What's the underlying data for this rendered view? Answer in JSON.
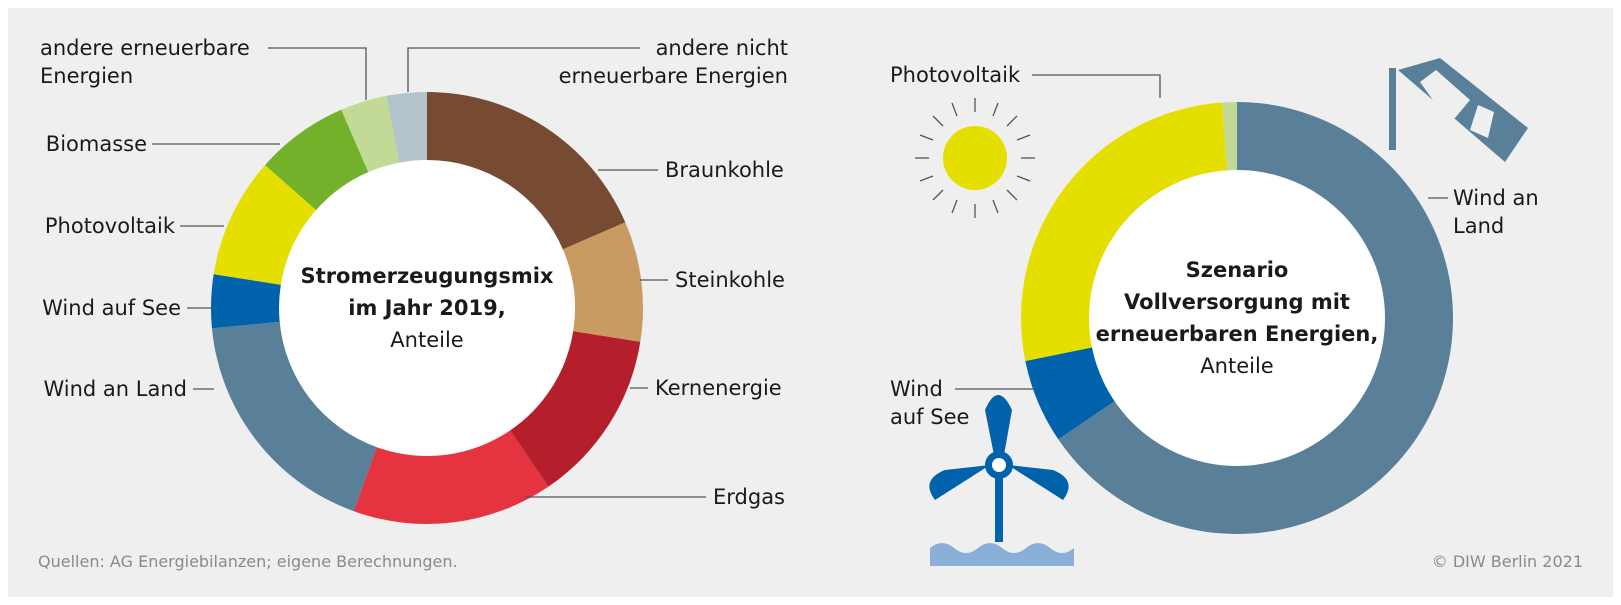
{
  "chart_data": [
    {
      "type": "donut",
      "title": "Stromerzeugungsmix\nim Jahr 2019,",
      "subtitle": "Anteile",
      "categories": [
        "Braunkohle",
        "Steinkohle",
        "Kernenergie",
        "Erdgas",
        "Wind an Land",
        "Wind auf See",
        "Photovoltaik",
        "Biomasse",
        "andere erneuerbare\nEnergien",
        "andere nicht\nerneuerbare Energien"
      ],
      "values": [
        18.5,
        9,
        13,
        15,
        18,
        4,
        9,
        7,
        3.5,
        3
      ],
      "colors": [
        "#774a32",
        "#c99a62",
        "#b41f2b",
        "#e5333f",
        "#5a7f99",
        "#0062ab",
        "#e5df00",
        "#73b12b",
        "#c3d996",
        "#b3c3cc"
      ]
    },
    {
      "type": "donut",
      "title": "Szenario\nVollversorgung mit\nerneuerbaren Energien,",
      "subtitle": "Anteile",
      "categories": [
        "Wind an\nLand",
        "Wind\nauf See",
        "Photovoltaik",
        null
      ],
      "values": [
        65.5,
        6.3,
        27.1,
        1.1
      ],
      "colors": [
        "#5a7f99",
        "#0062ab",
        "#e5df00",
        "#c3d996"
      ]
    }
  ],
  "source": "Quellen: AG Energiebilanzen; eigene Berechnungen.",
  "credit": "© DIW Berlin 2021"
}
